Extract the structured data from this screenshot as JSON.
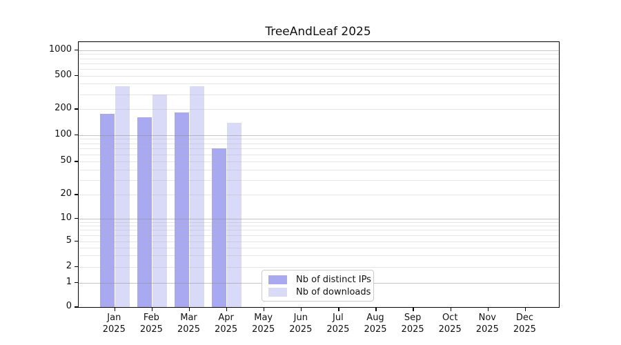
{
  "chart_data": {
    "type": "bar",
    "title": "TreeAndLeaf 2025",
    "categories": [
      "Jan",
      "Feb",
      "Mar",
      "Apr",
      "May",
      "Jun",
      "Jul",
      "Aug",
      "Sep",
      "Oct",
      "Nov",
      "Dec"
    ],
    "x_tick_line2": "2025",
    "series": [
      {
        "name": "Nb of distinct IPs",
        "color": "#a9a9f2",
        "values": [
          175,
          160,
          182,
          70,
          null,
          null,
          null,
          null,
          null,
          null,
          null,
          null
        ]
      },
      {
        "name": "Nb of downloads",
        "color": "#d9d9f8",
        "values": [
          370,
          295,
          375,
          138,
          null,
          null,
          null,
          null,
          null,
          null,
          null,
          null
        ]
      }
    ],
    "y_axis": {
      "scale": "log-like with 0 baseline",
      "tick_labels": [
        "0",
        "1",
        "2",
        "5",
        "10",
        "20",
        "50",
        "100",
        "200",
        "500",
        "1000"
      ],
      "tick_values": [
        0,
        1,
        2,
        5,
        10,
        20,
        50,
        100,
        200,
        500,
        1000
      ],
      "ylim": [
        0,
        1250
      ]
    },
    "grid": true,
    "grid_color_major": "#c6c6c6",
    "grid_color_minor": "#e7e7e7",
    "minor_grid_values": [
      3,
      4,
      6,
      7,
      8,
      9,
      30,
      40,
      60,
      70,
      80,
      90,
      300,
      400,
      600,
      700,
      800,
      900
    ],
    "legend_position": "bottom-center"
  }
}
